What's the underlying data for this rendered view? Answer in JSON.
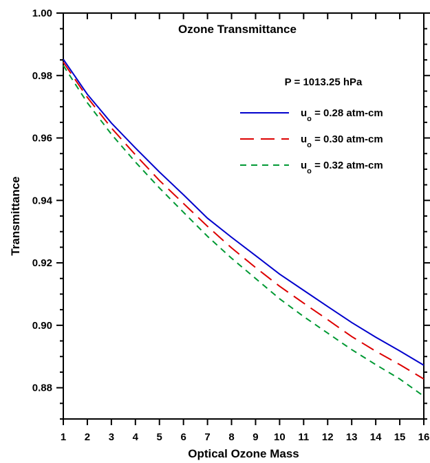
{
  "chart_data": {
    "type": "line",
    "title": "Ozone Transmittance",
    "annotation": "P = 1013.25 hPa",
    "xlabel": "Optical Ozone Mass",
    "ylabel": "Transmittance",
    "xlim": [
      1,
      16
    ],
    "ylim": [
      0.87,
      1.0
    ],
    "x_ticks": [
      1,
      2,
      3,
      4,
      5,
      6,
      7,
      8,
      9,
      10,
      11,
      12,
      13,
      14,
      15,
      16
    ],
    "x_tick_labels": [
      "1",
      "2",
      "3",
      "4",
      "5",
      "6",
      "7",
      "8",
      "9",
      "10",
      "11",
      "12",
      "13",
      "14",
      "15",
      "16"
    ],
    "y_ticks": [
      0.88,
      0.9,
      0.92,
      0.94,
      0.96,
      0.98,
      1.0
    ],
    "y_tick_labels": [
      "0.88",
      "0.90",
      "0.92",
      "0.94",
      "0.96",
      "0.98",
      "1.00"
    ],
    "grid": false,
    "legend_position": "top-right",
    "x": [
      1,
      2,
      3,
      4,
      5,
      6,
      7,
      8,
      9,
      10,
      11,
      12,
      13,
      14,
      15,
      16
    ],
    "series": [
      {
        "name": "u_o = 0.28 atm-cm",
        "legend_main": "u",
        "legend_sub": "o",
        "legend_rest": " = 0.28 atm-cm",
        "color": "#0000cc",
        "style": "solid",
        "values": [
          0.9852,
          0.974,
          0.9648,
          0.9568,
          0.9491,
          0.9418,
          0.9343,
          0.9282,
          0.9223,
          0.9164,
          0.9112,
          0.906,
          0.9009,
          0.8962,
          0.8918,
          0.8872
        ]
      },
      {
        "name": "u_o = 0.30 atm-cm",
        "legend_main": "u",
        "legend_sub": "o",
        "legend_rest": " = 0.30 atm-cm",
        "color": "#dd0000",
        "style": "dashed",
        "values": [
          0.9843,
          0.973,
          0.9632,
          0.9546,
          0.9464,
          0.939,
          0.9317,
          0.9248,
          0.9185,
          0.9125,
          0.9071,
          0.9018,
          0.8964,
          0.8917,
          0.8874,
          0.8828
        ]
      },
      {
        "name": "u_o = 0.32 atm-cm",
        "legend_main": "u",
        "legend_sub": "o",
        "legend_rest": " = 0.32 atm-cm",
        "color": "#009933",
        "style": "short-dashed",
        "values": [
          0.9832,
          0.9713,
          0.9612,
          0.9523,
          0.944,
          0.9362,
          0.9285,
          0.9215,
          0.915,
          0.9085,
          0.9028,
          0.8975,
          0.8922,
          0.8874,
          0.8828,
          0.8773
        ]
      }
    ]
  }
}
